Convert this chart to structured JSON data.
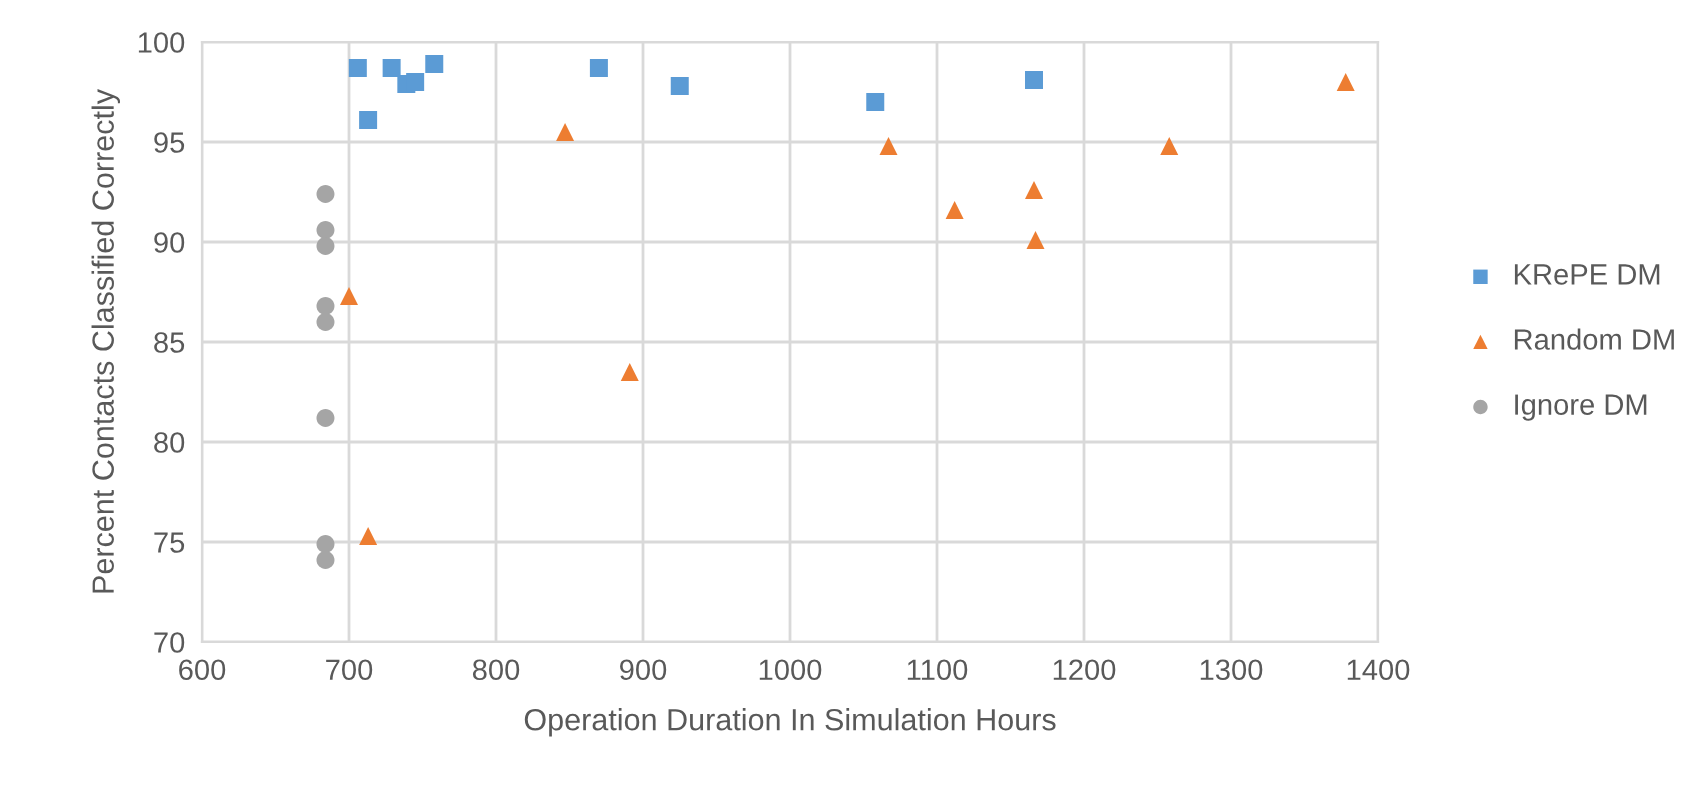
{
  "chart_data": {
    "type": "scatter",
    "xlabel": "Operation Duration In Simulation Hours",
    "ylabel": "Percent Contacts Classified Correctly",
    "xlim": [
      600,
      1400
    ],
    "xticks": [
      600,
      700,
      800,
      900,
      1000,
      1100,
      1200,
      1300,
      1400
    ],
    "ylim": [
      70,
      100
    ],
    "yticks": [
      70,
      75,
      80,
      85,
      90,
      95,
      100
    ],
    "grid": true,
    "legend": "right",
    "series": [
      {
        "name": "KRePE DM",
        "color": "#5b9bd5",
        "marker": "square",
        "x": [
          706,
          713,
          729,
          739,
          745,
          758,
          870,
          925,
          1058,
          1166
        ],
        "values": [
          98.7,
          96.1,
          98.7,
          97.9,
          98.0,
          98.9,
          98.7,
          97.8,
          97.0,
          98.1
        ]
      },
      {
        "name": "Random DM",
        "color": "#ed7d31",
        "marker": "triangle",
        "x": [
          847,
          700,
          891,
          713,
          1067,
          1112,
          1166,
          1167,
          1258,
          1378
        ],
        "values": [
          95.5,
          87.3,
          83.5,
          75.3,
          94.8,
          91.6,
          92.6,
          90.1,
          94.8,
          98.0
        ]
      },
      {
        "name": "Ignore DM",
        "color": "#a5a5a5",
        "marker": "circle",
        "x": [
          684,
          684,
          684,
          684,
          684,
          684,
          684,
          684
        ],
        "values": [
          92.4,
          90.6,
          89.8,
          86.8,
          86.0,
          81.2,
          74.9,
          74.1
        ]
      }
    ]
  }
}
